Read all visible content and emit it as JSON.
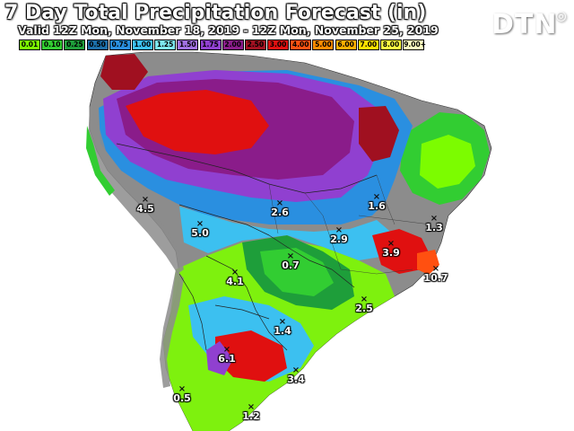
{
  "title": "7 Day Total Precipitation Forecast (in)",
  "valid": "Valid 12Z Mon, November 18, 2019 - 12Z Mon, November 25, 2019",
  "logo": "DTN",
  "legend": [
    {
      "label": "0.01",
      "color": "#7cfc00"
    },
    {
      "label": "0.10",
      "color": "#32cd32"
    },
    {
      "label": "0.25",
      "color": "#1e9e3a"
    },
    {
      "label": "0.50",
      "color": "#1b6ea8"
    },
    {
      "label": "0.75",
      "color": "#2a8fe0"
    },
    {
      "label": "1.00",
      "color": "#3cc0f0"
    },
    {
      "label": "1.25",
      "color": "#7de8f0"
    },
    {
      "label": "1.50",
      "color": "#a070e0"
    },
    {
      "label": "1.75",
      "color": "#9040d0"
    },
    {
      "label": "2.00",
      "color": "#8a1c8a"
    },
    {
      "label": "2.50",
      "color": "#a01020"
    },
    {
      "label": "3.00",
      "color": "#e01010"
    },
    {
      "label": "4.00",
      "color": "#ff5010"
    },
    {
      "label": "5.00",
      "color": "#ff8c00"
    },
    {
      "label": "6.00",
      "color": "#ffb000"
    },
    {
      "label": "7.00",
      "color": "#ffe000"
    },
    {
      "label": "8.00",
      "color": "#ffff40"
    },
    {
      "label": "9.00+",
      "color": "#ffffc0"
    }
  ],
  "points": [
    {
      "value": "4.5"
    },
    {
      "value": "5.0"
    },
    {
      "value": "2.6"
    },
    {
      "value": "1.6"
    },
    {
      "value": "1.3"
    },
    {
      "value": "2.9"
    },
    {
      "value": "3.9"
    },
    {
      "value": "0.7"
    },
    {
      "value": "4.1"
    },
    {
      "value": "10.7"
    },
    {
      "value": "2.5"
    },
    {
      "value": "1.4"
    },
    {
      "value": "6.1"
    },
    {
      "value": "3.4"
    },
    {
      "value": "0.5"
    },
    {
      "value": "1.2"
    }
  ]
}
